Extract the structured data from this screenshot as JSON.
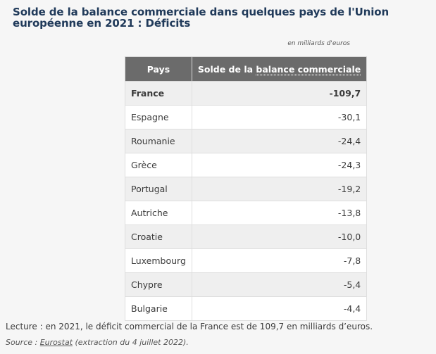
{
  "title": "Solde de la balance commerciale dans quelques pays de l'Union européenne en 2021 : Déficits",
  "unit_note": "en milliards d'euros",
  "table": {
    "headers": {
      "pays": "Pays",
      "solde_prefix": "Solde de la ",
      "solde_term": "balance commerciale"
    },
    "rows": [
      {
        "pays": "France",
        "solde": "-109,7",
        "emphasis": true
      },
      {
        "pays": "Espagne",
        "solde": "-30,1"
      },
      {
        "pays": "Roumanie",
        "solde": "-24,4"
      },
      {
        "pays": "Grèce",
        "solde": "-24,3"
      },
      {
        "pays": "Portugal",
        "solde": "-19,2"
      },
      {
        "pays": "Autriche",
        "solde": "-13,8"
      },
      {
        "pays": "Croatie",
        "solde": "-10,0"
      },
      {
        "pays": "Luxembourg",
        "solde": "-7,8"
      },
      {
        "pays": "Chypre",
        "solde": "-5,4"
      },
      {
        "pays": "Bulgarie",
        "solde": "-4,4"
      }
    ]
  },
  "footer": {
    "note": "Lecture : en 2021, le déficit commercial de la France est de 109,7 en milliards d’euros.",
    "source_prefix": "Source : ",
    "source_link": "Eurostat",
    "source_suffix": " (extraction du 4 juillet 2022)."
  }
}
